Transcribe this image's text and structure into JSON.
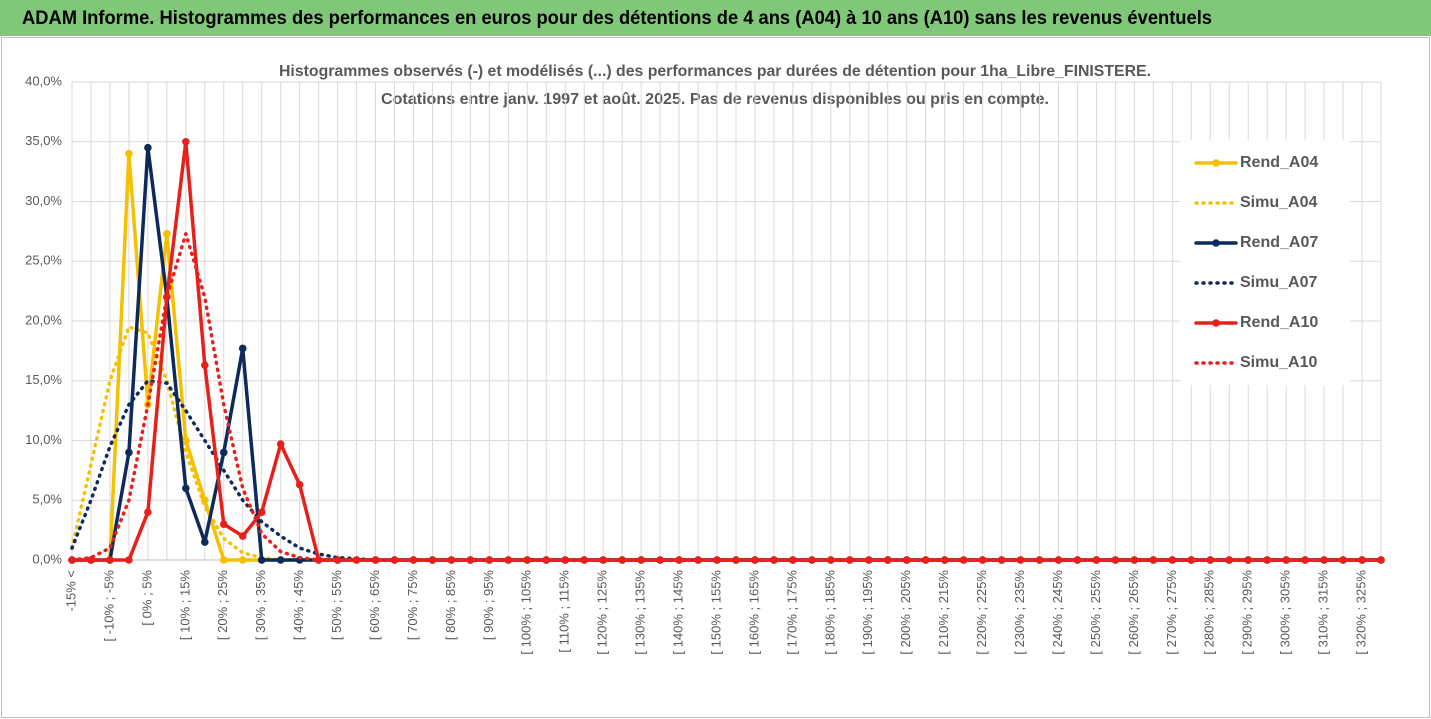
{
  "header": {
    "title": "ADAM Informe. Histogrammes des performances en euros pour des détentions de 4 ans (A04) à 10 ans (A10) sans les revenus éventuels"
  },
  "chart_data": {
    "type": "line",
    "title": "Histogrammes observés (-) et modélisés (...) des performances par durées de détention pour 1ha_Libre_FINISTERE.",
    "subtitle": "Cotations entre janv. 1997 et août. 2025. Pas de revenus disponibles ou pris en compte.",
    "categories": [
      "-15% <",
      null,
      "[ -10% ; -5%",
      null,
      "[ 0% ; 5%",
      null,
      "[ 10% ; 15%",
      null,
      "[ 20% ; 25%",
      null,
      "[ 30% ; 35%",
      null,
      "[ 40% ; 45%",
      null,
      "[ 50% ; 55%",
      null,
      "[ 60% ; 65%",
      null,
      "[ 70% ; 75%",
      null,
      "[ 80% ; 85%",
      null,
      "[ 90% ; 95%",
      null,
      "[ 100% ; 105%",
      null,
      "[ 110% ; 115%",
      null,
      "[ 120% ; 125%",
      null,
      "[ 130% ; 135%",
      null,
      "[ 140% ; 145%",
      null,
      "[ 150% ; 155%",
      null,
      "[ 160% ; 165%",
      null,
      "[ 170% ; 175%",
      null,
      "[ 180% ; 185%",
      null,
      "[ 190% ; 195%",
      null,
      "[ 200% ; 205%",
      null,
      "[ 210% ; 215%",
      null,
      "[ 220% ; 225%",
      null,
      "[ 230% ; 235%",
      null,
      "[ 240% ; 245%",
      null,
      "[ 250% ; 255%",
      null,
      "[ 260% ; 265%",
      null,
      "[ 270% ; 275%",
      null,
      "[ 280% ; 285%",
      null,
      "[ 290% ; 295%",
      null,
      "[ 300% ; 305%",
      null,
      "[ 310% ; 315%",
      null,
      "[ 320% ; 325%",
      null
    ],
    "series": [
      {
        "name": "Rend_A04",
        "color": "#f5c000",
        "dash": "solid",
        "marker": true,
        "values": [
          0,
          0,
          0,
          34,
          13,
          27.3,
          10,
          5,
          0,
          0,
          0,
          0,
          0,
          0,
          0,
          0,
          0,
          0,
          0,
          0,
          0,
          0,
          0,
          0,
          0,
          0,
          0,
          0,
          0,
          0,
          0,
          0,
          0,
          0,
          0,
          0,
          0,
          0,
          0,
          0,
          0,
          0,
          0,
          0,
          0,
          0,
          0,
          0,
          0,
          0,
          0,
          0,
          0,
          0,
          0,
          0,
          0,
          0,
          0,
          0,
          0,
          0,
          0,
          0,
          0,
          0,
          0,
          0,
          0,
          0
        ]
      },
      {
        "name": "Simu_A04",
        "color": "#f5c000",
        "dash": "dotted",
        "marker": false,
        "values": [
          1,
          8,
          15,
          19.5,
          19,
          15,
          9,
          4.5,
          1.8,
          0.6,
          0.2,
          0,
          0,
          0,
          0,
          0,
          0,
          0,
          0,
          0,
          0,
          0,
          0,
          0,
          0,
          0,
          0,
          0,
          0,
          0,
          0,
          0,
          0,
          0,
          0,
          0,
          0,
          0,
          0,
          0,
          0,
          0,
          0,
          0,
          0,
          0,
          0,
          0,
          0,
          0,
          0,
          0,
          0,
          0,
          0,
          0,
          0,
          0,
          0,
          0,
          0,
          0,
          0,
          0,
          0,
          0,
          0,
          0,
          0,
          0
        ]
      },
      {
        "name": "Rend_A07",
        "color": "#0d2a5a",
        "dash": "solid",
        "marker": true,
        "values": [
          0,
          0,
          0,
          9,
          34.5,
          22,
          6,
          1.5,
          9,
          17.7,
          0,
          0,
          0,
          0,
          0,
          0,
          0,
          0,
          0,
          0,
          0,
          0,
          0,
          0,
          0,
          0,
          0,
          0,
          0,
          0,
          0,
          0,
          0,
          0,
          0,
          0,
          0,
          0,
          0,
          0,
          0,
          0,
          0,
          0,
          0,
          0,
          0,
          0,
          0,
          0,
          0,
          0,
          0,
          0,
          0,
          0,
          0,
          0,
          0,
          0,
          0,
          0,
          0,
          0,
          0,
          0,
          0,
          0,
          0,
          0
        ]
      },
      {
        "name": "Simu_A07",
        "color": "#0d2a5a",
        "dash": "dotted",
        "marker": false,
        "values": [
          1,
          5,
          9.5,
          13,
          15,
          14.8,
          12.5,
          10,
          7.5,
          5,
          3.2,
          2,
          1,
          0.5,
          0.2,
          0.1,
          0,
          0,
          0,
          0,
          0,
          0,
          0,
          0,
          0,
          0,
          0,
          0,
          0,
          0,
          0,
          0,
          0,
          0,
          0,
          0,
          0,
          0,
          0,
          0,
          0,
          0,
          0,
          0,
          0,
          0,
          0,
          0,
          0,
          0,
          0,
          0,
          0,
          0,
          0,
          0,
          0,
          0,
          0,
          0,
          0,
          0,
          0,
          0,
          0,
          0,
          0,
          0,
          0,
          0
        ]
      },
      {
        "name": "Rend_A10",
        "color": "#e8201c",
        "dash": "solid",
        "marker": true,
        "values": [
          0,
          0,
          0,
          0,
          4,
          22,
          35,
          16.3,
          3,
          2,
          4,
          9.7,
          6.3,
          0,
          0,
          0,
          0,
          0,
          0,
          0,
          0,
          0,
          0,
          0,
          0,
          0,
          0,
          0,
          0,
          0,
          0,
          0,
          0,
          0,
          0,
          0,
          0,
          0,
          0,
          0,
          0,
          0,
          0,
          0,
          0,
          0,
          0,
          0,
          0,
          0,
          0,
          0,
          0,
          0,
          0,
          0,
          0,
          0,
          0,
          0,
          0,
          0,
          0,
          0,
          0,
          0,
          0,
          0,
          0,
          0
        ]
      },
      {
        "name": "Simu_A10",
        "color": "#e8201c",
        "dash": "dotted",
        "marker": false,
        "values": [
          0,
          0.2,
          1,
          5,
          13,
          22,
          27.3,
          22,
          13,
          6,
          2.2,
          0.7,
          0.2,
          0,
          0,
          0,
          0,
          0,
          0,
          0,
          0,
          0,
          0,
          0,
          0,
          0,
          0,
          0,
          0,
          0,
          0,
          0,
          0,
          0,
          0,
          0,
          0,
          0,
          0,
          0,
          0,
          0,
          0,
          0,
          0,
          0,
          0,
          0,
          0,
          0,
          0,
          0,
          0,
          0,
          0,
          0,
          0,
          0,
          0,
          0,
          0,
          0,
          0,
          0,
          0,
          0,
          0,
          0,
          0,
          0
        ]
      }
    ],
    "ylim": [
      0,
      40
    ],
    "yticks": [
      {
        "value": 0,
        "label": "0,0%"
      },
      {
        "value": 5,
        "label": "5,0%"
      },
      {
        "value": 10,
        "label": "10,0%"
      },
      {
        "value": 15,
        "label": "15,0%"
      },
      {
        "value": 20,
        "label": "20,0%"
      },
      {
        "value": 25,
        "label": "25,0%"
      },
      {
        "value": 30,
        "label": "30,0%"
      },
      {
        "value": 35,
        "label": "35,0%"
      },
      {
        "value": 40,
        "label": "40,0%"
      }
    ],
    "grid": true,
    "legend": "right"
  }
}
